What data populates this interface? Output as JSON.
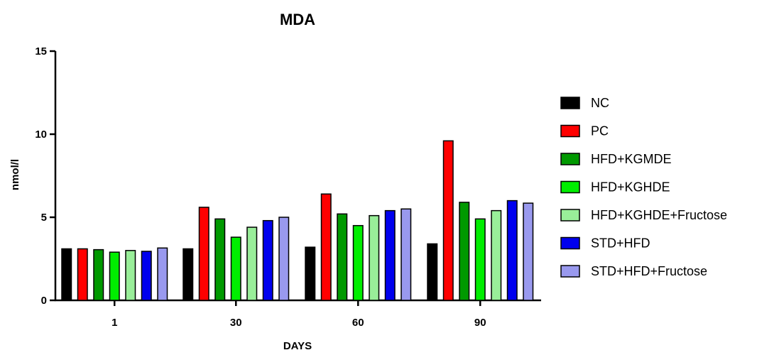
{
  "chart_data": {
    "type": "bar",
    "title": "MDA",
    "xlabel": "DAYS",
    "ylabel": "nmol/l",
    "ylim": [
      0,
      15
    ],
    "yticks": [
      0,
      5,
      10,
      15
    ],
    "categories": [
      "1",
      "30",
      "60",
      "90"
    ],
    "grid": false,
    "legend_position": "right",
    "series": [
      {
        "name": "NC",
        "color": "#000000",
        "values": [
          3.1,
          3.1,
          3.2,
          3.4
        ]
      },
      {
        "name": "PC",
        "color": "#ff0000",
        "values": [
          3.1,
          5.6,
          6.4,
          9.6
        ]
      },
      {
        "name": "HFD+KGMDE",
        "color": "#009900",
        "values": [
          3.05,
          4.9,
          5.2,
          5.9
        ]
      },
      {
        "name": "HFD+KGHDE",
        "color": "#00ee00",
        "values": [
          2.9,
          3.8,
          4.5,
          4.9
        ]
      },
      {
        "name": "HFD+KGHDE+Fructose",
        "color": "#99ee99",
        "values": [
          3.0,
          4.4,
          5.1,
          5.4
        ]
      },
      {
        "name": "STD+HFD",
        "color": "#0000ee",
        "values": [
          2.95,
          4.8,
          5.4,
          6.0
        ]
      },
      {
        "name": "STD+HFD+Fructose",
        "color": "#9999ee",
        "values": [
          3.15,
          5.0,
          5.5,
          5.85
        ]
      }
    ]
  }
}
